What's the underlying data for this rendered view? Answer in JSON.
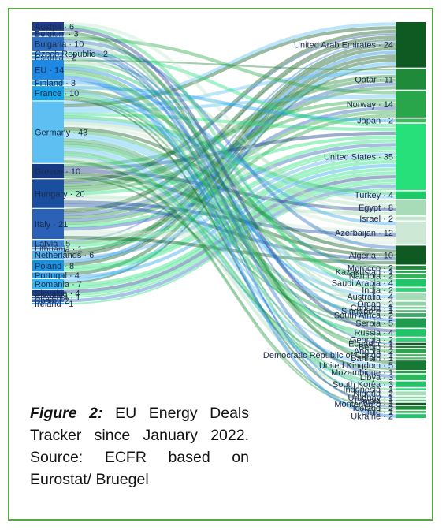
{
  "chart_data": {
    "type": "sankey",
    "unit": "deals",
    "colors": {
      "border": "#5aa646"
    },
    "sources": [
      {
        "name": "Austria",
        "value": 6,
        "color": "#1f3b8c"
      },
      {
        "name": "Belgium",
        "value": 3,
        "color": "#2655a8"
      },
      {
        "name": "Bulgaria",
        "value": 10,
        "color": "#2a6fc4"
      },
      {
        "name": "Czech Republic",
        "value": 2,
        "color": "#3a8ad8"
      },
      {
        "name": "Estonia",
        "value": 2,
        "color": "#48a2e6"
      },
      {
        "name": "EU",
        "value": 14,
        "color": "#1e88e5"
      },
      {
        "name": "Finland",
        "value": 3,
        "color": "#3aa8ee"
      },
      {
        "name": "France",
        "value": 10,
        "color": "#19a4ea"
      },
      {
        "name": "Germany",
        "value": 43,
        "color": "#5ec0f2"
      },
      {
        "name": "Greece",
        "value": 10,
        "color": "#173a84"
      },
      {
        "name": "Hungary",
        "value": 20,
        "color": "#1a4e9e"
      },
      {
        "name": "Italy",
        "value": 21,
        "color": "#2b62b8"
      },
      {
        "name": "Latvia",
        "value": 5,
        "color": "#3e86d4"
      },
      {
        "name": "Lithuania",
        "value": 1,
        "color": "#4a96de"
      },
      {
        "name": "Netherlands",
        "value": 6,
        "color": "#56b0ea"
      },
      {
        "name": "Poland",
        "value": 8,
        "color": "#1a90e0"
      },
      {
        "name": "Portugal",
        "value": 4,
        "color": "#2ca4ec"
      },
      {
        "name": "Romania",
        "value": 7,
        "color": "#3ab4f2"
      },
      {
        "name": "Slovakia",
        "value": 4,
        "color": "#1c3c8c"
      },
      {
        "name": "Slovenia",
        "value": 1,
        "color": "#2656aa"
      },
      {
        "name": "Spain",
        "value": 2,
        "color": "#3070c4"
      },
      {
        "name": "Ireland",
        "value": 1,
        "color": "#3c88d6"
      }
    ],
    "targets": [
      {
        "name": "United Arab Emirates",
        "value": 24,
        "color": "#0f5a22"
      },
      {
        "name": "Qatar",
        "value": 11,
        "color": "#1e8a3a"
      },
      {
        "name": "Norway",
        "value": 14,
        "color": "#2aa64a"
      },
      {
        "name": "Japan",
        "value": 2,
        "color": "#3dbb5c"
      },
      {
        "name": "United States",
        "value": 35,
        "color": "#27e07a"
      },
      {
        "name": "Turkey",
        "value": 4,
        "color": "#1fc968"
      },
      {
        "name": "Egypt",
        "value": 8,
        "color": "#a8dcb8"
      },
      {
        "name": "Israel",
        "value": 2,
        "color": "#c4e6cf"
      },
      {
        "name": "Azerbaijan",
        "value": 12,
        "color": "#cde8d5"
      },
      {
        "name": "Algeria",
        "value": 10,
        "color": "#0f5a22"
      },
      {
        "name": "Morocco",
        "value": 2,
        "color": "#1f8a3c"
      },
      {
        "name": "Kazakhstan",
        "value": 1,
        "color": "#27a04a"
      },
      {
        "name": "Namibia",
        "value": 2,
        "color": "#33b456"
      },
      {
        "name": "Saudi Arabia",
        "value": 4,
        "color": "#22c46a"
      },
      {
        "name": "India",
        "value": 2,
        "color": "#30d476"
      },
      {
        "name": "Australia",
        "value": 4,
        "color": "#a8dcb8"
      },
      {
        "name": "Oman",
        "value": 2,
        "color": "#8fd2a6"
      },
      {
        "name": "Canada",
        "value": 1,
        "color": "#7ac895"
      },
      {
        "name": "Singapore",
        "value": 1,
        "color": "#5cbc80"
      },
      {
        "name": "South Africa",
        "value": 2,
        "color": "#3aa866"
      },
      {
        "name": "Serbia",
        "value": 5,
        "color": "#1f9a4e"
      },
      {
        "name": "Russia",
        "value": 4,
        "color": "#22c46a"
      },
      {
        "name": "Georgia",
        "value": 2,
        "color": "#35d07a"
      },
      {
        "name": "Ecuador",
        "value": 1,
        "color": "#0f5a22"
      },
      {
        "name": "Benin",
        "value": 1,
        "color": "#1d8a3a"
      },
      {
        "name": "Angola",
        "value": 2,
        "color": "#2aa64a"
      },
      {
        "name": "Democratic Republic of Congo",
        "value": 1,
        "color": "#3dbb5c"
      },
      {
        "name": "Bahrain",
        "value": 1,
        "color": "#52c470"
      },
      {
        "name": "United Kingdom",
        "value": 5,
        "color": "#177a34"
      },
      {
        "name": "Mozambique",
        "value": 1,
        "color": "#22a04a"
      },
      {
        "name": "Libya",
        "value": 3,
        "color": "#2cb85a"
      },
      {
        "name": "South Korea",
        "value": 3,
        "color": "#22c46a"
      },
      {
        "name": "Indonesia",
        "value": 1,
        "color": "#35d07a"
      },
      {
        "name": "Nigeria",
        "value": 2,
        "color": "#a8dcb8"
      },
      {
        "name": "Uruguay",
        "value": 1,
        "color": "#8fd2a6"
      },
      {
        "name": "Tunisia",
        "value": 1,
        "color": "#6ec48c"
      },
      {
        "name": "Montenegro",
        "value": 1,
        "color": "#0f5a22"
      },
      {
        "name": "Iceland",
        "value": 2,
        "color": "#1d8a3a"
      },
      {
        "name": "Chile",
        "value": 1,
        "color": "#2aa64a"
      },
      {
        "name": "Ukraine",
        "value": 2,
        "color": "#22c46a"
      }
    ]
  },
  "caption": {
    "figure_label": "Figure 2:",
    "text": "EU Energy Deals Tracker since January 2022. Source: ECFR based on Eurostat/ Bruegel"
  }
}
